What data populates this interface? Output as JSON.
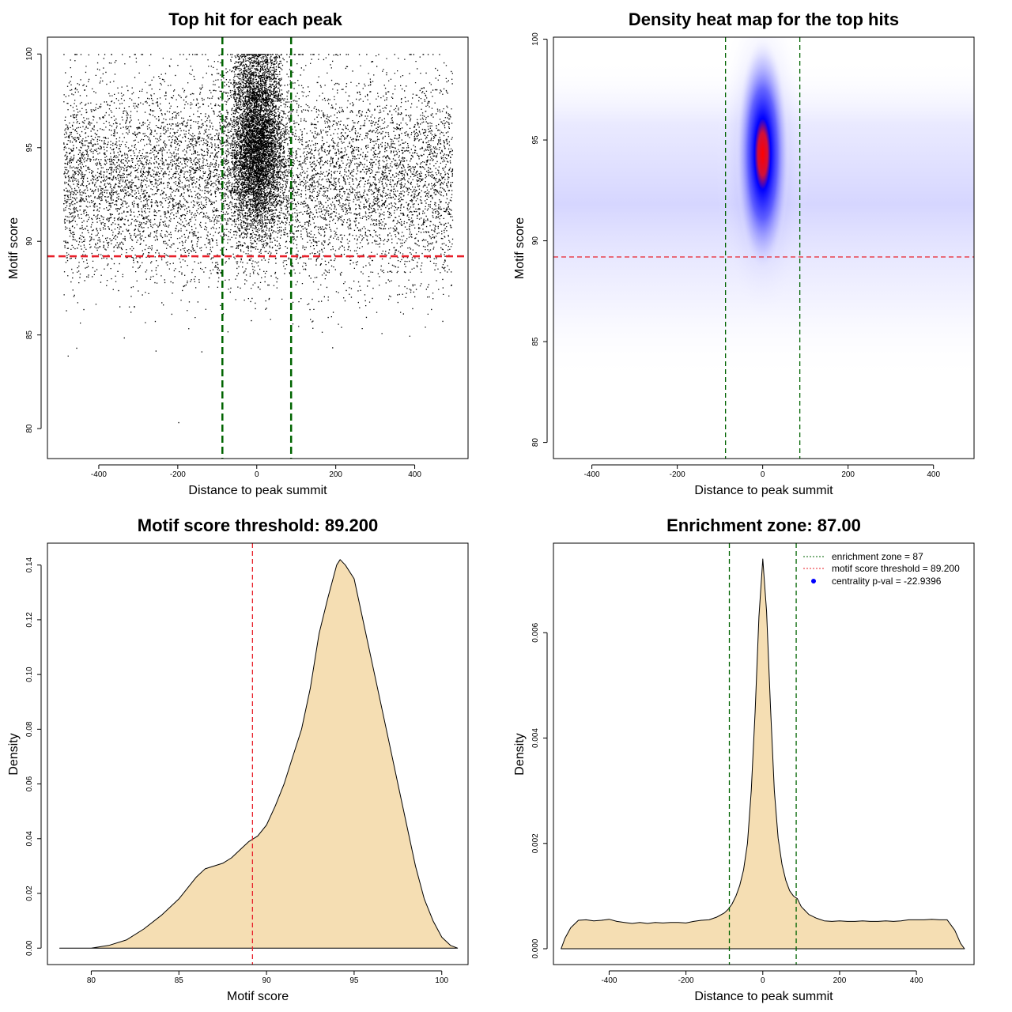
{
  "colors": {
    "density_fill": "#f5deb3",
    "threshold_line": "#e8202a",
    "zone_line": "#006400",
    "heat_low": "#ffffff",
    "heat_mid": "#0000ff",
    "heat_high": "#ff0000",
    "legend_point": "#0000ff"
  },
  "chart_data": [
    {
      "type": "scatter",
      "title": "Top hit for each peak",
      "xlabel": "Distance to peak summit",
      "ylabel": "Motif score",
      "xlim": [
        -530,
        535
      ],
      "ylim": [
        78.4,
        100.9
      ],
      "xticks": [
        -400,
        -200,
        0,
        200,
        400
      ],
      "yticks": [
        80,
        85,
        90,
        95,
        100
      ],
      "vlines": [
        -87,
        87
      ],
      "hlines": [
        89.2
      ],
      "x_range": [
        -490,
        495
      ],
      "y_range": [
        79.2,
        100
      ],
      "central_peak": {
        "x_center": 0,
        "y_center": 95
      }
    },
    {
      "type": "heatmap",
      "title": "Density heat map for the top hits",
      "xlabel": "Distance to peak summit",
      "ylabel": "Motif score",
      "xlim": [
        -490,
        495
      ],
      "ylim": [
        79.2,
        100.1
      ],
      "xticks": [
        -400,
        -200,
        0,
        200,
        400
      ],
      "yticks": [
        80,
        85,
        90,
        95,
        100
      ],
      "vlines": [
        -87,
        87
      ],
      "hlines": [
        89.2
      ],
      "peak": {
        "x": 0,
        "y": 94.5
      }
    },
    {
      "type": "area",
      "title": "Motif score threshold: 89.200",
      "xlabel": "Motif score",
      "ylabel": "Density",
      "xlim": [
        77.5,
        101.5
      ],
      "ylim": [
        -0.006,
        0.148
      ],
      "xticks": [
        80,
        85,
        90,
        95,
        100
      ],
      "yticks": [
        0.0,
        0.02,
        0.04,
        0.06,
        0.08,
        0.1,
        0.12,
        0.14
      ],
      "vlines": [
        89.2
      ],
      "x": [
        78.2,
        80,
        81,
        82,
        83,
        84,
        85,
        86,
        86.5,
        87.5,
        88,
        88.5,
        89,
        89.5,
        90,
        90.5,
        91,
        91.5,
        92,
        92.5,
        93,
        93.5,
        94,
        94.2,
        94.5,
        95,
        95.5,
        96,
        96.5,
        97,
        97.5,
        98,
        98.5,
        99,
        99.5,
        100,
        100.5,
        100.9
      ],
      "y": [
        0.0,
        0.0,
        0.001,
        0.003,
        0.007,
        0.012,
        0.018,
        0.026,
        0.029,
        0.031,
        0.033,
        0.036,
        0.039,
        0.041,
        0.045,
        0.052,
        0.06,
        0.07,
        0.08,
        0.095,
        0.115,
        0.128,
        0.14,
        0.142,
        0.14,
        0.135,
        0.12,
        0.105,
        0.09,
        0.075,
        0.06,
        0.045,
        0.03,
        0.018,
        0.01,
        0.004,
        0.001,
        0.0
      ]
    },
    {
      "type": "area",
      "title": "Enrichment zone: 87.00",
      "xlabel": "Distance to peak summit",
      "ylabel": "Density",
      "xlim": [
        -545,
        550
      ],
      "ylim": [
        -0.0003,
        0.0077
      ],
      "xticks": [
        -400,
        -200,
        0,
        200,
        400
      ],
      "yticks": [
        0.0,
        0.002,
        0.004,
        0.006
      ],
      "vlines": [
        -87,
        87
      ],
      "x": [
        -525,
        -515,
        -500,
        -480,
        -460,
        -440,
        -420,
        -400,
        -380,
        -360,
        -340,
        -320,
        -300,
        -280,
        -260,
        -240,
        -220,
        -200,
        -180,
        -160,
        -140,
        -120,
        -100,
        -90,
        -80,
        -70,
        -60,
        -50,
        -40,
        -30,
        -20,
        -10,
        0,
        10,
        20,
        30,
        40,
        50,
        60,
        70,
        80,
        90,
        100,
        120,
        140,
        160,
        180,
        200,
        220,
        240,
        260,
        280,
        300,
        320,
        340,
        360,
        380,
        400,
        420,
        440,
        460,
        480,
        500,
        515,
        525
      ],
      "y": [
        0.0,
        0.0002,
        0.0004,
        0.00054,
        0.00055,
        0.00053,
        0.00054,
        0.00056,
        0.00052,
        0.0005,
        0.00048,
        0.0005,
        0.00048,
        0.0005,
        0.00049,
        0.0005,
        0.0005,
        0.00049,
        0.00052,
        0.00054,
        0.00055,
        0.0006,
        0.00068,
        0.00075,
        0.00085,
        0.001,
        0.0012,
        0.0015,
        0.002,
        0.003,
        0.0045,
        0.0063,
        0.0074,
        0.0064,
        0.0046,
        0.003,
        0.0021,
        0.0016,
        0.0013,
        0.0011,
        0.001,
        0.00095,
        0.0008,
        0.00065,
        0.00058,
        0.00053,
        0.00052,
        0.00053,
        0.00052,
        0.00052,
        0.00053,
        0.00052,
        0.00052,
        0.00053,
        0.00052,
        0.00053,
        0.00055,
        0.00055,
        0.00055,
        0.00056,
        0.00055,
        0.00055,
        0.00035,
        0.0001,
        0.0
      ],
      "legend": [
        {
          "label": "enrichment zone = 87",
          "style": "dotted",
          "color": "#006400"
        },
        {
          "label": "motif score threshold = 89.200",
          "style": "dotted",
          "color": "#e8202a"
        },
        {
          "label": "centrality p-val = -22.9396",
          "style": "point",
          "color": "#0000ff"
        }
      ],
      "legend_position": "top-right"
    }
  ]
}
